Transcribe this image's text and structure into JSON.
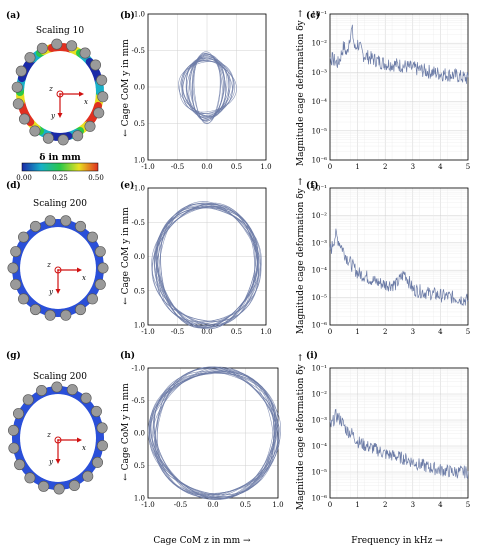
{
  "figure": {
    "panel_letters": [
      "(a)",
      "(b)",
      "(c)",
      "(d)",
      "(e)",
      "(f)",
      "(g)",
      "(h)",
      "(i)"
    ],
    "rows": [
      {
        "scaling": "Scaling 10",
        "cage_color": "#d23a2a"
      },
      {
        "scaling": "Scaling 200",
        "cage_color": "#2a4fd8"
      },
      {
        "scaling": "Scaling 200",
        "cage_color": "#2a4fd8"
      }
    ],
    "colorbar": {
      "title": "δ in mm",
      "ticks": [
        "0.00",
        "0.25",
        "0.50"
      ],
      "colors": [
        "#1a2aa8",
        "#18b0c8",
        "#2ac84a",
        "#e8e020",
        "#e03020"
      ]
    },
    "axis_letters": {
      "z": "z",
      "x": "x",
      "y": "y"
    },
    "orbit_ylabel": "← Cage CoM y in mm",
    "orbit_xlabel": "Cage CoM z in mm →",
    "spectrum_ylabel": "Magnitude cage deformation δy →",
    "spectrum_xlabel": "Frequency in kHz →",
    "line_color": "#6b7ba6"
  },
  "chart_data": [
    {
      "panel": "b",
      "type": "line",
      "xlim": [
        -1.0,
        1.0
      ],
      "ylim": [
        1.0,
        -1.0
      ],
      "xticks": [
        "-1.0",
        "-0.5",
        "0.0",
        "0.5",
        "1.0"
      ],
      "yticks": [
        "-1.0",
        "-0.5",
        "0.0",
        "0.5",
        "1.0"
      ],
      "orbit": {
        "cx": 0.0,
        "cy": 0.0,
        "rx_outer": 0.48,
        "ry_outer": 0.48,
        "rx_inner": 0.22,
        "ry_inner": 0.22
      },
      "grid": true
    },
    {
      "panel": "c",
      "type": "line",
      "yscale": "log",
      "xlim": [
        0,
        5
      ],
      "ylim_exp": [
        -6,
        -1
      ],
      "xticks": [
        "0",
        "1",
        "2",
        "3",
        "4",
        "5"
      ],
      "yticks": [
        "10⁻⁶",
        "10⁻⁵",
        "10⁻⁴",
        "10⁻³",
        "10⁻²",
        "10⁻¹"
      ],
      "x": [
        0.05,
        0.3,
        0.5,
        0.62,
        0.7,
        0.8,
        0.9,
        1.0,
        1.2,
        1.5,
        2.0,
        2.5,
        3.0,
        3.5,
        4.0,
        4.5,
        5.0
      ],
      "y": [
        0.003,
        0.002,
        0.008,
        0.004,
        0.015,
        0.03,
        0.006,
        0.01,
        0.004,
        0.003,
        0.002,
        0.0018,
        0.0014,
        0.0011,
        0.0009,
        0.0008,
        0.0006
      ],
      "grid": true
    },
    {
      "panel": "e",
      "type": "line",
      "xlim": [
        -1.0,
        1.0
      ],
      "ylim": [
        1.0,
        -1.0
      ],
      "xticks": [
        "-1.0",
        "-0.5",
        "0.0",
        "0.5",
        "1.0"
      ],
      "yticks": [
        "-1.0",
        "-0.5",
        "0.0",
        "0.5",
        "1.0"
      ],
      "orbit": {
        "cx": 0.0,
        "cy": 0.12,
        "rx_outer": 0.9,
        "ry_outer": 0.9,
        "rx_inner": 0.82,
        "ry_inner": 0.8
      },
      "grid": true
    },
    {
      "panel": "f",
      "type": "line",
      "yscale": "log",
      "xlim": [
        0,
        5
      ],
      "ylim_exp": [
        -6,
        -1
      ],
      "xticks": [
        "0",
        "1",
        "2",
        "3",
        "4",
        "5"
      ],
      "yticks": [
        "10⁻⁶",
        "10⁻⁵",
        "10⁻⁴",
        "10⁻³",
        "10⁻²",
        "10⁻¹"
      ],
      "x": [
        0.05,
        0.2,
        0.4,
        0.6,
        0.8,
        1.0,
        1.3,
        1.6,
        2.0,
        2.4,
        2.7,
        3.0,
        3.5,
        4.0,
        4.5,
        5.0
      ],
      "y": [
        0.0006,
        0.002,
        0.0008,
        0.0003,
        0.00015,
        8e-05,
        6e-05,
        4e-05,
        3e-05,
        3e-05,
        8e-05,
        2e-05,
        1.5e-05,
        1.2e-05,
        1e-05,
        8e-06
      ],
      "grid": true
    },
    {
      "panel": "h",
      "type": "line",
      "xlim": [
        -1.0,
        1.0
      ],
      "ylim": [
        1.0,
        -1.0
      ],
      "xticks": [
        "-1.0",
        "-0.5",
        "0.0",
        "0.5",
        "1.0"
      ],
      "yticks": [
        "-1.0",
        "-0.5",
        "0.0",
        "0.5",
        "1.0"
      ],
      "orbit": {
        "cx": 0.03,
        "cy": 0.0,
        "rx_outer": 0.98,
        "ry_outer": 0.98,
        "rx_inner": 0.92,
        "ry_inner": 0.94
      },
      "grid": true
    },
    {
      "panel": "i",
      "type": "line",
      "yscale": "log",
      "xlim": [
        0,
        5
      ],
      "ylim_exp": [
        -6,
        -1
      ],
      "xticks": [
        "0",
        "1",
        "2",
        "3",
        "4",
        "5"
      ],
      "yticks": [
        "10⁻⁶",
        "10⁻⁵",
        "10⁻⁴",
        "10⁻³",
        "10⁻²",
        "10⁻¹"
      ],
      "x": [
        0.05,
        0.2,
        0.4,
        0.6,
        0.8,
        1.0,
        1.3,
        1.6,
        2.0,
        2.4,
        2.8,
        3.2,
        3.6,
        4.0,
        4.5,
        5.0
      ],
      "y": [
        0.0006,
        0.0015,
        0.001,
        0.0004,
        0.0003,
        0.00015,
        0.0001,
        8e-05,
        5e-05,
        4e-05,
        3e-05,
        2e-05,
        1.5e-05,
        1.2e-05,
        1e-05,
        1e-05
      ],
      "grid": true
    }
  ]
}
